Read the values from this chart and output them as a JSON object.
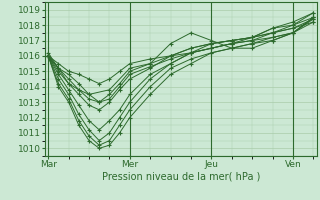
{
  "bg_color": "#cce8d4",
  "grid_color": "#aaccaa",
  "line_color": "#2d6a2d",
  "xlabel": "Pression niveau de la mer( hPa )",
  "xtick_labels": [
    "Mar",
    "Mer",
    "Jeu",
    "Ven"
  ],
  "xtick_positions": [
    0,
    48,
    96,
    144
  ],
  "ylim": [
    1009.5,
    1019.5
  ],
  "yticks": [
    1010,
    1011,
    1012,
    1013,
    1014,
    1015,
    1016,
    1017,
    1018,
    1019
  ],
  "xlim": [
    -2,
    158
  ],
  "lines": [
    [
      0,
      1016.0,
      6,
      1015.2,
      12,
      1014.8,
      18,
      1014.2,
      24,
      1013.5,
      30,
      1013.0,
      36,
      1013.2,
      42,
      1014.0,
      48,
      1014.8,
      60,
      1015.3,
      72,
      1015.8,
      84,
      1016.2,
      96,
      1016.5,
      108,
      1016.8,
      120,
      1017.2,
      132,
      1017.8,
      144,
      1018.2,
      156,
      1018.8
    ],
    [
      0,
      1016.0,
      6,
      1015.0,
      12,
      1014.2,
      18,
      1013.5,
      24,
      1012.8,
      30,
      1012.5,
      36,
      1013.0,
      42,
      1013.8,
      48,
      1014.5,
      60,
      1015.2,
      72,
      1016.0,
      84,
      1016.5,
      96,
      1016.8,
      108,
      1017.0,
      120,
      1017.2,
      132,
      1017.8,
      144,
      1018.0,
      156,
      1018.5
    ],
    [
      0,
      1016.0,
      6,
      1014.8,
      12,
      1013.8,
      18,
      1012.8,
      24,
      1011.8,
      30,
      1011.2,
      36,
      1011.8,
      42,
      1012.5,
      48,
      1013.5,
      60,
      1014.8,
      72,
      1015.5,
      84,
      1016.2,
      96,
      1016.8,
      108,
      1017.0,
      120,
      1017.2,
      132,
      1017.5,
      144,
      1017.8,
      156,
      1018.4
    ],
    [
      0,
      1016.0,
      6,
      1014.5,
      12,
      1013.5,
      18,
      1012.2,
      24,
      1011.2,
      30,
      1010.5,
      36,
      1011.0,
      42,
      1012.0,
      48,
      1013.0,
      60,
      1014.5,
      72,
      1015.5,
      84,
      1016.2,
      96,
      1016.5,
      108,
      1016.8,
      120,
      1017.0,
      132,
      1017.2,
      144,
      1017.5,
      156,
      1018.2
    ],
    [
      0,
      1016.0,
      6,
      1014.2,
      12,
      1013.2,
      18,
      1011.8,
      24,
      1010.8,
      30,
      1010.2,
      36,
      1010.5,
      42,
      1011.5,
      48,
      1012.5,
      60,
      1014.0,
      72,
      1015.2,
      84,
      1015.8,
      96,
      1016.2,
      108,
      1016.5,
      120,
      1016.8,
      132,
      1017.0,
      144,
      1017.5,
      156,
      1018.5
    ],
    [
      0,
      1016.0,
      6,
      1014.0,
      12,
      1013.0,
      18,
      1011.5,
      24,
      1010.5,
      30,
      1010.0,
      36,
      1010.2,
      42,
      1011.0,
      48,
      1012.0,
      60,
      1013.5,
      72,
      1014.8,
      84,
      1015.5,
      96,
      1016.2,
      108,
      1016.5,
      120,
      1016.8,
      132,
      1017.2,
      144,
      1017.5,
      156,
      1018.5
    ],
    [
      0,
      1016.0,
      6,
      1015.2,
      12,
      1014.5,
      18,
      1013.8,
      24,
      1013.2,
      30,
      1013.0,
      36,
      1013.5,
      42,
      1014.2,
      48,
      1015.0,
      60,
      1015.5,
      72,
      1016.0,
      84,
      1016.5,
      96,
      1016.8,
      108,
      1017.0,
      120,
      1017.2,
      132,
      1017.5,
      144,
      1017.8,
      156,
      1018.2
    ],
    [
      0,
      1016.0,
      6,
      1015.5,
      12,
      1015.0,
      18,
      1014.8,
      24,
      1014.5,
      30,
      1014.2,
      36,
      1014.5,
      42,
      1015.0,
      48,
      1015.5,
      60,
      1015.8,
      72,
      1016.0,
      84,
      1016.2,
      96,
      1016.5,
      108,
      1016.8,
      120,
      1017.0,
      132,
      1017.5,
      144,
      1018.0,
      156,
      1018.8
    ],
    [
      0,
      1016.2,
      12,
      1014.2,
      18,
      1013.8,
      24,
      1013.5,
      36,
      1013.8,
      48,
      1015.2,
      60,
      1015.5,
      72,
      1016.8,
      84,
      1017.5,
      96,
      1017.0,
      108,
      1016.5,
      120,
      1016.5,
      132,
      1017.0,
      144,
      1017.5,
      156,
      1018.4
    ]
  ]
}
